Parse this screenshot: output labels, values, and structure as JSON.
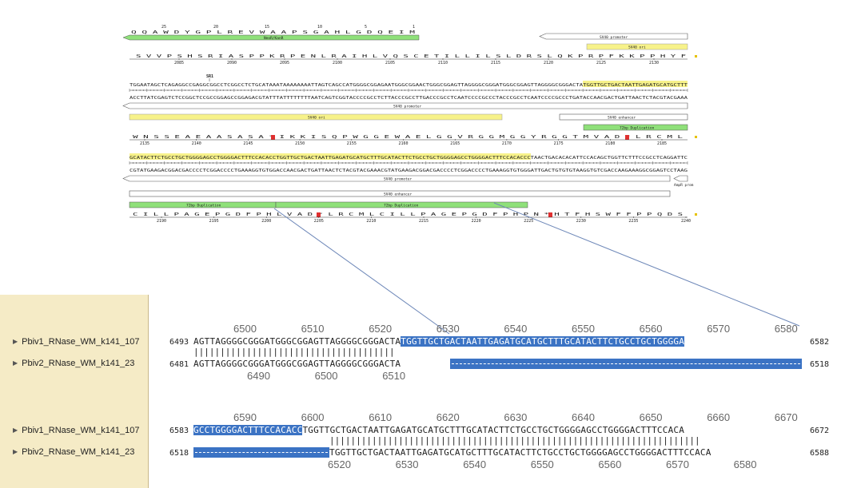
{
  "map": {
    "feature_labels": {
      "neor": "NeoR/KanR",
      "sv40_promoter": "SV40 promoter",
      "sv40_ori": "SV40 ori",
      "sv40_enhancer": "SV40 enhancer",
      "dup72": "72bp Duplication",
      "ampr_prom": "AmpR prom",
      "sr1": "SR1"
    },
    "row1": {
      "aa_top": "Q Q A W D Y G P L R E V W A A P S G A H L G D Q E I M",
      "aa_top_ticks": [
        "25",
        "20",
        "15",
        "10",
        "5",
        "1"
      ],
      "aa": "S V V P S H S R I A S P P K R P E N L R A I H L V Q S C E T I L L I L S L D R S L Q K P R P F K K P P H Y F",
      "ticks": [
        "2085",
        "2090",
        "2095",
        "2100",
        "2105",
        "2110",
        "2115",
        "2120",
        "2125",
        "2130"
      ]
    },
    "row2": {
      "dna_top": "TGGAATAGCTCAGAGGCCGAGGCGGCCTCGGCCTCTGCATAAATAAAAAAAATTAGTCAGCCATGGGGCGGAGAATGGGCGGAACTGGGCGGAGTTAGGGGCGGGATGGGCGGAGTTAGGGGCGGGACTATGGTTGCTGACTAATTGAGATGCATGCTTT",
      "dna_bot": "ACCTTATCGAGTCTCCGGCTCCGCCGGAGCCGGAGACGTATTTATTTTTTTTAATCAGTCGGTACCCCGCCTCTTACCCGCCTTGACCCGCCTCAATCCCCGCCCTACCCGCCTCAATCCCCGCCCTGATACCAACGACTGATTAACTCTACGTACGAAA",
      "aa": "W N S S E A E A A S A S A * I K K I S Q P W G G E W A E L G G V R G G M G G Y R G G T M V A D * L R C M L",
      "ticks": [
        "2135",
        "2140",
        "2145",
        "2150",
        "2155",
        "2160",
        "2165",
        "2170",
        "2175",
        "2180",
        "2185"
      ]
    },
    "row3": {
      "dna_top": "GCATACTTCTGCCTGCTGGGGAGCCTGGGGACTTTCCACACCTGGTTGCTGACTAATTGAGATGCATGCTTTGCATACTTCTGCCTGCTGGGGAGCCTGGGGACTTTCCACACCCTAACTGACACACATTCCACAGCTGGTTCTTTCCGCCTCAGGATTC",
      "dna_bot": "CGTATGAAGACGGACGACCCCTCGGACCCCTGAAAGGTGTGGACCAACGACTGATTAACTCTACGTACGAAACGTATGAAGACGGACGACCCCTCGGACCCCTGAAAGGTGTGGGATTGACTGTGTGTAAGGTGTCGACCAAGAAAGGCGGAGTCCTAAG",
      "aa": "C I L L P A G E P G D F P H L V A D * L R C M L C I L L P A G E P G D F P H P N * H T F H S W F F P P Q D S",
      "ticks": [
        "2190",
        "2195",
        "2200",
        "2205",
        "2210",
        "2215",
        "2220",
        "2225",
        "2230",
        "2235",
        "2240"
      ]
    }
  },
  "alignment": {
    "block1": {
      "top_positions": [
        "6500",
        "6510",
        "6520",
        "6530",
        "6540",
        "6550",
        "6560",
        "6570",
        "6580"
      ],
      "seq1": {
        "name": "Pbiv1_RNase_WM_k141_107",
        "start": "6493",
        "end": "6582",
        "plain": "AGTTAGGGGCGGGATGGGCGGAGTTAGGGGCGGGACTA",
        "highlight": "TGGTTGCTGACTAATTGAGATGCATGCTTTGCATACTTCTGCCTGCTGGGGA"
      },
      "seq2": {
        "name": "Pbiv2_RNase_WM_k141_23",
        "start": "6481",
        "end": "6518",
        "plain": "AGTTAGGGGCGGGATGGGCGGAGTTAGGGGCGGGACTA"
      },
      "bottom_positions": [
        "6490",
        "6500",
        "6510"
      ]
    },
    "block2": {
      "top_positions": [
        "6590",
        "6600",
        "6610",
        "6620",
        "6630",
        "6640",
        "6650",
        "6660",
        "6670"
      ],
      "seq1": {
        "name": "Pbiv1_RNase_WM_k141_107",
        "start": "6583",
        "end": "6672",
        "highlight": "GCCTGGGGACTTTCCACACC",
        "plain": "TGGTTGCTGACTAATTGAGATGCATGCTTTGCATACTTCTGCCTGCTGGGGAGCCTGGGGACTTTCCACA"
      },
      "seq2": {
        "name": "Pbiv2_RNase_WM_k141_23",
        "start": "6518",
        "end": "6588",
        "plain": "TGGTTGCTGACTAATTGAGATGCATGCTTTGCATACTTCTGCCTGCTGGGGAGCCTGGGGACTTTCCACA"
      },
      "bottom_positions": [
        "6520",
        "6530",
        "6540",
        "6550",
        "6560",
        "6570",
        "6580"
      ]
    }
  },
  "colors": {
    "highlight": "#3b73c4",
    "feature_yellow": "#f7f28a",
    "feature_green": "#8fe07a",
    "panel": "#f5ebc6"
  }
}
